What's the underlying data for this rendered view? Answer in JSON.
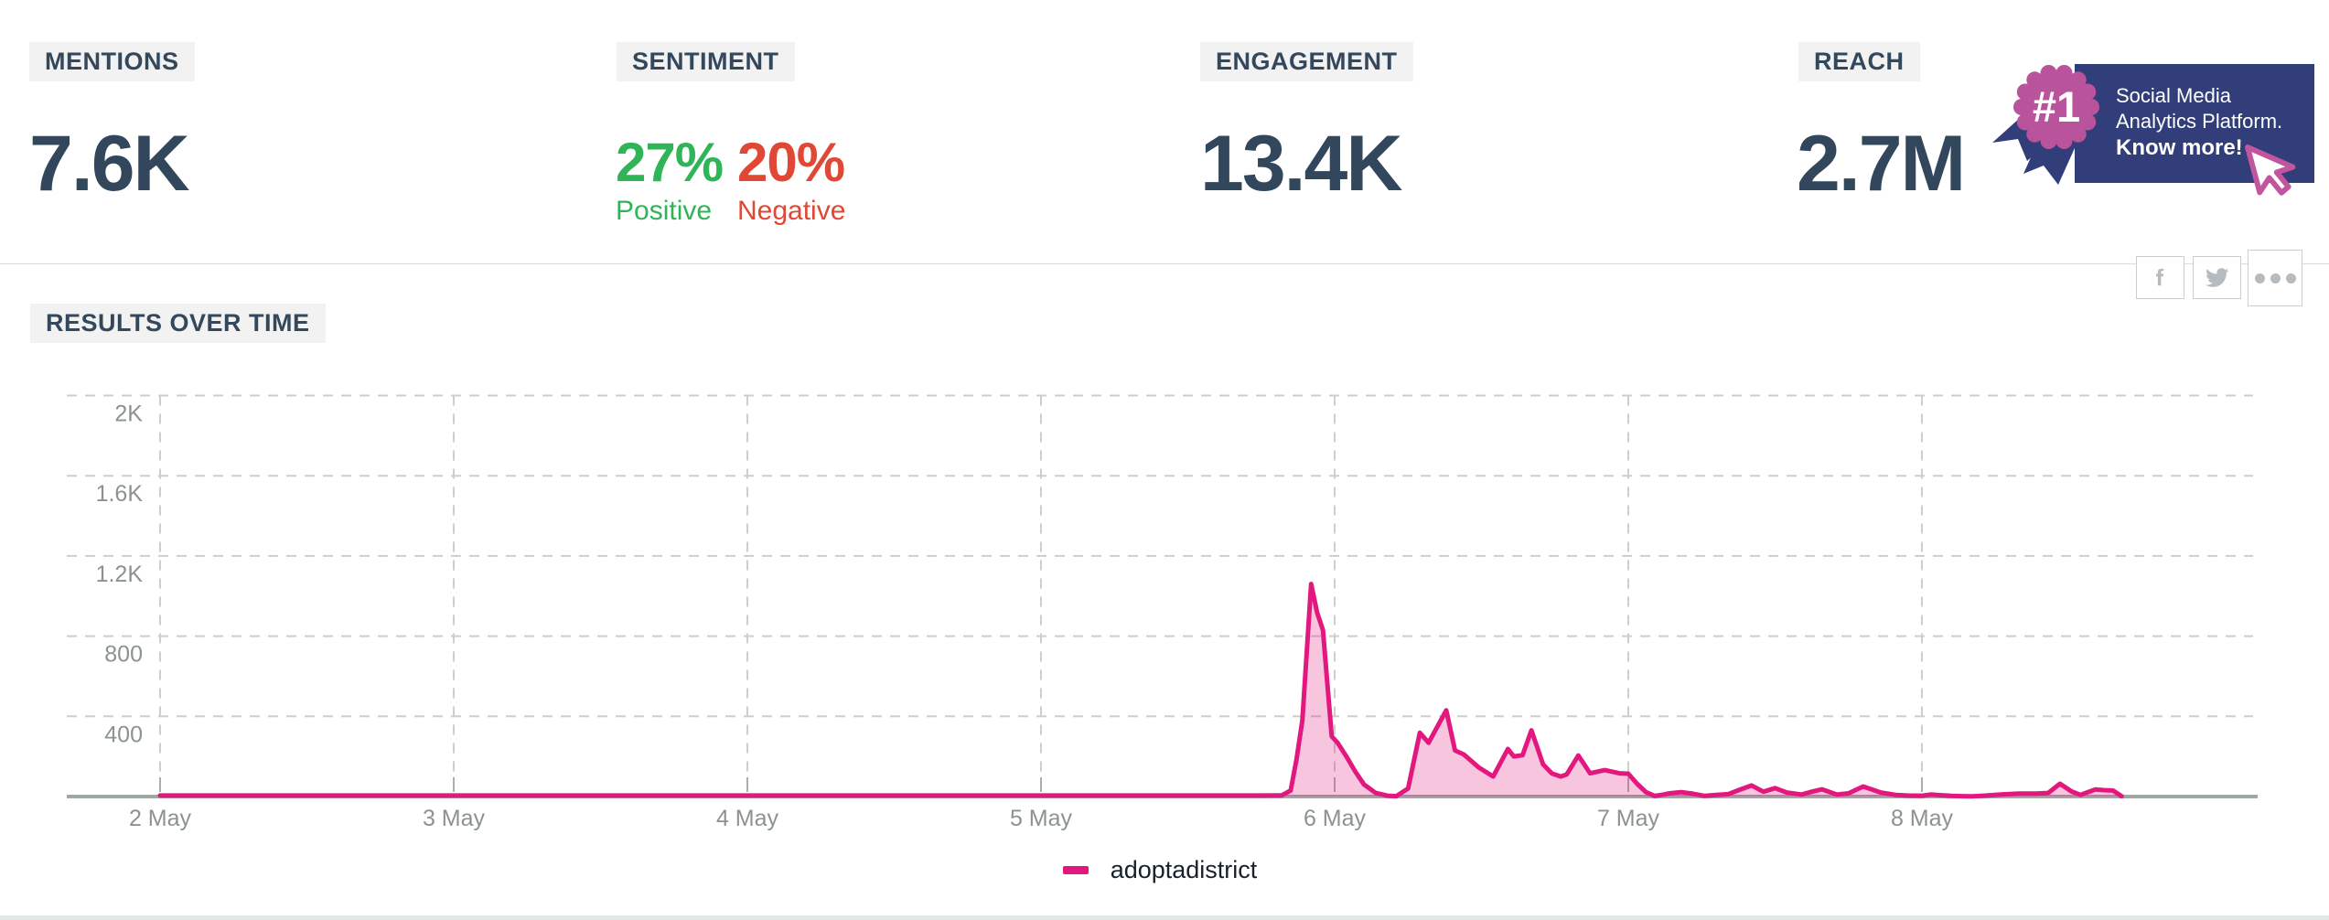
{
  "metrics": {
    "mentions": {
      "label": "MENTIONS",
      "value": "7.6K"
    },
    "sentiment": {
      "label": "SENTIMENT",
      "positive_value": "27%",
      "positive_label": "Positive",
      "negative_value": "20%",
      "negative_label": "Negative",
      "positive_color": "#2fb457",
      "negative_color": "#e04734"
    },
    "engagement": {
      "label": "ENGAGEMENT",
      "value": "13.4K"
    },
    "reach": {
      "label": "REACH",
      "value": "2.7M"
    }
  },
  "promo_badge": {
    "rank": "#1",
    "line1": "Social Media",
    "line2": "Analytics Platform.",
    "cta": "Know more!",
    "bg_color": "#323e79",
    "rosette_color": "#b9539b",
    "cursor_color": "#c2569e"
  },
  "share_buttons": {
    "icons": [
      "facebook-icon",
      "twitter-icon",
      "ellipsis-icon"
    ],
    "icon_color": "#b6bbbf"
  },
  "section": {
    "title": "RESULTS OVER TIME"
  },
  "chart_data": {
    "type": "area",
    "title": "RESULTS OVER TIME",
    "x_axis": {
      "tick_labels": [
        "2 May",
        "3 May",
        "4 May",
        "5 May",
        "6 May",
        "7 May",
        "8 May"
      ],
      "unit": "date"
    },
    "y_axis": {
      "tick_labels": [
        "2K",
        "1.6K",
        "1.2K",
        "800",
        "400"
      ],
      "tick_values": [
        2000,
        1600,
        1200,
        800,
        400
      ],
      "range": [
        0,
        2000
      ],
      "grid": "dashed"
    },
    "legend": {
      "position": "bottom",
      "entries": [
        {
          "label": "adoptadistrict",
          "color": "#e2187f"
        }
      ]
    },
    "series": [
      {
        "name": "adoptadistrict",
        "color": "#e2187f",
        "fill_opacity": 0.25,
        "points_format": [
          "days_since_2_may",
          "mentions"
        ],
        "points": [
          [
            0,
            5
          ],
          [
            0.25,
            5
          ],
          [
            0.5,
            5
          ],
          [
            0.75,
            5
          ],
          [
            1,
            5
          ],
          [
            1.25,
            5
          ],
          [
            1.5,
            5
          ],
          [
            1.75,
            5
          ],
          [
            2,
            5
          ],
          [
            2.25,
            5
          ],
          [
            2.5,
            5
          ],
          [
            2.75,
            5
          ],
          [
            3,
            5
          ],
          [
            3.25,
            5
          ],
          [
            3.5,
            5
          ],
          [
            3.75,
            5
          ],
          [
            3.82,
            6
          ],
          [
            3.85,
            30
          ],
          [
            3.87,
            185
          ],
          [
            3.89,
            380
          ],
          [
            3.92,
            1060
          ],
          [
            3.94,
            920
          ],
          [
            3.96,
            830
          ],
          [
            3.99,
            300
          ],
          [
            4.01,
            268
          ],
          [
            4.04,
            200
          ],
          [
            4.07,
            125
          ],
          [
            4.1,
            60
          ],
          [
            4.14,
            18
          ],
          [
            4.18,
            4
          ],
          [
            4.21,
            2
          ],
          [
            4.25,
            40
          ],
          [
            4.29,
            318
          ],
          [
            4.32,
            268
          ],
          [
            4.38,
            430
          ],
          [
            4.41,
            230
          ],
          [
            4.44,
            210
          ],
          [
            4.49,
            146
          ],
          [
            4.54,
            100
          ],
          [
            4.59,
            237
          ],
          [
            4.61,
            200
          ],
          [
            4.64,
            206
          ],
          [
            4.67,
            330
          ],
          [
            4.71,
            160
          ],
          [
            4.74,
            115
          ],
          [
            4.77,
            100
          ],
          [
            4.79,
            110
          ],
          [
            4.83,
            205
          ],
          [
            4.87,
            116
          ],
          [
            4.92,
            132
          ],
          [
            4.97,
            116
          ],
          [
            5,
            114
          ],
          [
            5.03,
            64
          ],
          [
            5.06,
            22
          ],
          [
            5.09,
            3
          ],
          [
            5.12,
            10
          ],
          [
            5.14,
            16
          ],
          [
            5.18,
            22
          ],
          [
            5.22,
            14
          ],
          [
            5.26,
            3
          ],
          [
            5.3,
            8
          ],
          [
            5.34,
            12
          ],
          [
            5.38,
            34
          ],
          [
            5.42,
            55
          ],
          [
            5.46,
            24
          ],
          [
            5.5,
            42
          ],
          [
            5.54,
            20
          ],
          [
            5.59,
            10
          ],
          [
            5.63,
            26
          ],
          [
            5.66,
            36
          ],
          [
            5.71,
            10
          ],
          [
            5.75,
            16
          ],
          [
            5.8,
            50
          ],
          [
            5.86,
            20
          ],
          [
            5.91,
            8
          ],
          [
            5.95,
            5
          ],
          [
            6,
            4
          ],
          [
            6.03,
            10
          ],
          [
            6.05,
            8
          ],
          [
            6.1,
            3
          ],
          [
            6.14,
            2
          ],
          [
            6.17,
            1
          ],
          [
            6.22,
            5
          ],
          [
            6.27,
            10
          ],
          [
            6.33,
            15
          ],
          [
            6.39,
            15
          ],
          [
            6.43,
            18
          ],
          [
            6.47,
            64
          ],
          [
            6.51,
            25
          ],
          [
            6.54,
            8
          ],
          [
            6.59,
            35
          ],
          [
            6.62,
            32
          ],
          [
            6.65,
            30
          ],
          [
            6.68,
            2
          ]
        ]
      }
    ]
  },
  "colors": {
    "heading_text": "#32475c",
    "chip_bg": "#f1f2f1",
    "axis_line": "#9ea7a3",
    "grid_line": "#cecece",
    "axis_label": "#8b9390",
    "divider": "#dadcdc",
    "bottom_strip": "#e4e7e7"
  }
}
